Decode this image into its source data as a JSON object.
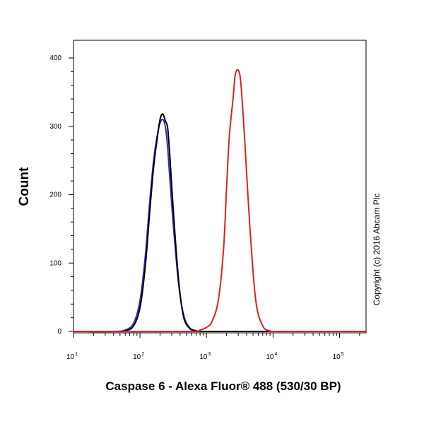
{
  "chart_data": {
    "type": "line",
    "title": "",
    "xlabel": "Caspase 6 - Alexa Fluor® 488 (530/30 BP)",
    "ylabel": "Count",
    "xscale": "log",
    "xlim": [
      10,
      250000
    ],
    "ylim": [
      0,
      420
    ],
    "grid": false,
    "legend": "none",
    "x_ticks": [
      {
        "base": "10",
        "exp": "1"
      },
      {
        "base": "10",
        "exp": "2"
      },
      {
        "base": "10",
        "exp": "3"
      },
      {
        "base": "10",
        "exp": "4"
      },
      {
        "base": "10",
        "exp": "5"
      }
    ],
    "y_ticks": [
      "0",
      "100",
      "200",
      "300",
      "400"
    ],
    "copyright": "Copyright (c) 2016 Abcam Plc",
    "series": [
      {
        "color": "#2b2bd8",
        "x": [
          10,
          40,
          60,
          80,
          100,
          120,
          140,
          160,
          180,
          200,
          220,
          240,
          260,
          280,
          320,
          380,
          450,
          550,
          700,
          1000,
          250000
        ],
        "y": [
          0,
          0,
          2,
          12,
          45,
          110,
          190,
          250,
          285,
          305,
          310,
          300,
          270,
          225,
          150,
          70,
          25,
          6,
          1,
          0,
          0
        ]
      },
      {
        "color": "#000000",
        "x": [
          10,
          40,
          60,
          80,
          100,
          120,
          140,
          160,
          180,
          200,
          220,
          240,
          260,
          280,
          320,
          380,
          450,
          550,
          700,
          1000,
          250000
        ],
        "y": [
          0,
          0,
          1,
          8,
          35,
          95,
          175,
          240,
          280,
          310,
          318,
          308,
          298,
          258,
          170,
          75,
          22,
          5,
          1,
          0,
          0
        ]
      },
      {
        "color": "#e02020",
        "x": [
          10,
          500,
          800,
          1000,
          1200,
          1500,
          1800,
          2000,
          2200,
          2500,
          2700,
          3000,
          3300,
          3800,
          4500,
          5500,
          7000,
          9000,
          12000,
          250000
        ],
        "y": [
          0,
          0,
          2,
          6,
          14,
          45,
          120,
          210,
          285,
          340,
          375,
          382,
          360,
          270,
          150,
          45,
          8,
          1,
          0,
          0
        ]
      }
    ]
  }
}
